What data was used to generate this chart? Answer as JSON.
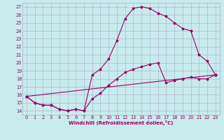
{
  "xlabel": "Windchill (Refroidissement éolien,°C)",
  "bg_color": "#c8ecec",
  "line_color": "#990066",
  "grid_color": "#aaaacc",
  "xlim": [
    -0.5,
    23.5
  ],
  "ylim": [
    13.5,
    27.5
  ],
  "yticks": [
    14,
    15,
    16,
    17,
    18,
    19,
    20,
    21,
    22,
    23,
    24,
    25,
    26,
    27
  ],
  "xticks": [
    0,
    1,
    2,
    3,
    4,
    5,
    6,
    7,
    8,
    9,
    10,
    11,
    12,
    13,
    14,
    15,
    16,
    17,
    18,
    19,
    20,
    21,
    22,
    23
  ],
  "line1_x": [
    0,
    1,
    2,
    3,
    4,
    5,
    6,
    7,
    8,
    9,
    10,
    11,
    12,
    13,
    14,
    15,
    16,
    17,
    18,
    19,
    20,
    21,
    22,
    23
  ],
  "line1_y": [
    15.8,
    15.0,
    14.7,
    14.7,
    14.2,
    14.0,
    14.2,
    14.0,
    18.5,
    19.2,
    20.5,
    22.8,
    25.5,
    26.8,
    27.0,
    26.8,
    26.2,
    25.8,
    25.0,
    24.3,
    24.0,
    21.0,
    20.2,
    18.5
  ],
  "line2_x": [
    0,
    1,
    2,
    3,
    4,
    5,
    6,
    7,
    8,
    9,
    10,
    11,
    12,
    13,
    14,
    15,
    16,
    17,
    18,
    19,
    20,
    21,
    22,
    23
  ],
  "line2_y": [
    15.8,
    15.0,
    14.7,
    14.7,
    14.2,
    14.0,
    14.2,
    14.0,
    15.5,
    16.2,
    17.2,
    18.0,
    18.8,
    19.2,
    19.5,
    19.8,
    20.0,
    17.5,
    17.8,
    18.0,
    18.2,
    18.0,
    18.0,
    18.5
  ],
  "line3_x": [
    0,
    23
  ],
  "line3_y": [
    15.8,
    18.5
  ]
}
